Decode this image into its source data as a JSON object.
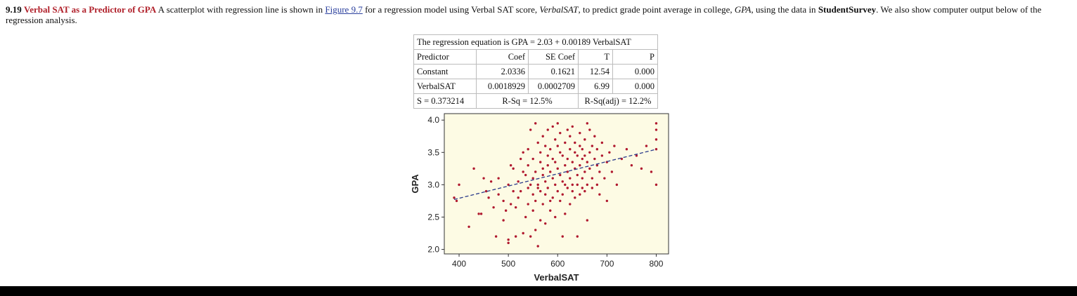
{
  "problem": {
    "number": "9.19",
    "title": "Verbal SAT as a Predictor of GPA",
    "text_1": " A scatterplot with regression line is shown in ",
    "link": "Figure 9.7",
    "text_2": " for a regression model using Verbal SAT score, ",
    "var1": "VerbalSAT",
    "text_3": ", to predict grade point average in college, ",
    "var2": "GPA",
    "text_4": ", using the data in ",
    "dataset": "StudentSurvey",
    "text_5": ". We also show computer output below of the regression analysis."
  },
  "regression_output": {
    "equation": "The regression equation is GPA = 2.03 + 0.00189 VerbalSAT",
    "headers": [
      "Predictor",
      "Coef",
      "SE Coef",
      "T",
      "P"
    ],
    "rows": [
      [
        "Constant",
        "2.0336",
        "0.1621",
        "12.54",
        "0.000"
      ],
      [
        "VerbalSAT",
        "0.0018929",
        "0.0002709",
        "6.99",
        "0.000"
      ]
    ],
    "s": "S = 0.373214",
    "rsq": "R-Sq = 12.5%",
    "rsq_adj": "R-Sq(adj) = 12.2%"
  },
  "chart_data": {
    "type": "scatter",
    "title": "",
    "xlabel": "VerbalSAT",
    "ylabel": "GPA",
    "xlim": [
      370,
      825
    ],
    "ylim": [
      1.93,
      4.1
    ],
    "xticks": [
      "400",
      "500",
      "600",
      "700",
      "800"
    ],
    "yticks": [
      "4.0",
      "3.5",
      "3.0",
      "2.5",
      "2.0"
    ],
    "regression_line": {
      "intercept": 2.0336,
      "slope": 0.0018929,
      "x_range": [
        390,
        800
      ]
    },
    "colors": {
      "points": "#b0192f",
      "line": "#2a3a8a",
      "plot_bg": "#fdfbe4"
    },
    "points": [
      [
        390,
        2.8
      ],
      [
        395,
        2.75
      ],
      [
        400,
        3.0
      ],
      [
        420,
        2.35
      ],
      [
        430,
        3.25
      ],
      [
        440,
        2.55
      ],
      [
        445,
        2.55
      ],
      [
        450,
        3.1
      ],
      [
        455,
        2.9
      ],
      [
        460,
        2.8
      ],
      [
        465,
        3.05
      ],
      [
        470,
        2.65
      ],
      [
        475,
        2.2
      ],
      [
        480,
        2.85
      ],
      [
        480,
        3.1
      ],
      [
        490,
        2.75
      ],
      [
        490,
        2.45
      ],
      [
        495,
        2.6
      ],
      [
        500,
        2.15
      ],
      [
        500,
        2.1
      ],
      [
        500,
        3.0
      ],
      [
        505,
        2.7
      ],
      [
        505,
        3.3
      ],
      [
        510,
        3.25
      ],
      [
        510,
        2.9
      ],
      [
        515,
        2.2
      ],
      [
        515,
        2.65
      ],
      [
        520,
        3.05
      ],
      [
        520,
        2.8
      ],
      [
        525,
        3.4
      ],
      [
        525,
        2.9
      ],
      [
        530,
        2.25
      ],
      [
        530,
        3.2
      ],
      [
        530,
        3.5
      ],
      [
        535,
        2.5
      ],
      [
        535,
        3.15
      ],
      [
        540,
        2.95
      ],
      [
        540,
        3.3
      ],
      [
        540,
        2.7
      ],
      [
        540,
        3.55
      ],
      [
        545,
        3.85
      ],
      [
        545,
        2.2
      ],
      [
        545,
        3.0
      ],
      [
        550,
        3.1
      ],
      [
        550,
        2.85
      ],
      [
        550,
        3.4
      ],
      [
        550,
        2.6
      ],
      [
        555,
        2.3
      ],
      [
        555,
        3.95
      ],
      [
        555,
        3.2
      ],
      [
        555,
        2.75
      ],
      [
        560,
        3.0
      ],
      [
        560,
        3.65
      ],
      [
        560,
        2.95
      ],
      [
        560,
        2.05
      ],
      [
        565,
        3.35
      ],
      [
        565,
        2.45
      ],
      [
        565,
        3.5
      ],
      [
        565,
        2.9
      ],
      [
        570,
        3.15
      ],
      [
        570,
        2.7
      ],
      [
        570,
        3.75
      ],
      [
        570,
        3.25
      ],
      [
        575,
        2.4
      ],
      [
        575,
        3.05
      ],
      [
        575,
        3.6
      ],
      [
        575,
        2.85
      ],
      [
        580,
        3.3
      ],
      [
        580,
        3.45
      ],
      [
        580,
        2.95
      ],
      [
        580,
        3.85
      ],
      [
        585,
        2.6
      ],
      [
        585,
        3.2
      ],
      [
        585,
        3.55
      ],
      [
        585,
        2.75
      ],
      [
        590,
        3.1
      ],
      [
        590,
        3.9
      ],
      [
        590,
        2.8
      ],
      [
        590,
        3.4
      ],
      [
        595,
        3.0
      ],
      [
        595,
        3.7
      ],
      [
        595,
        3.35
      ],
      [
        595,
        2.5
      ],
      [
        600,
        3.25
      ],
      [
        600,
        3.6
      ],
      [
        600,
        2.9
      ],
      [
        600,
        3.95
      ],
      [
        605,
        3.15
      ],
      [
        605,
        3.5
      ],
      [
        605,
        2.75
      ],
      [
        605,
        3.8
      ],
      [
        610,
        3.05
      ],
      [
        610,
        3.45
      ],
      [
        610,
        2.85
      ],
      [
        610,
        2.2
      ],
      [
        615,
        3.3
      ],
      [
        615,
        3.65
      ],
      [
        615,
        3.0
      ],
      [
        615,
        2.55
      ],
      [
        620,
        3.4
      ],
      [
        620,
        3.2
      ],
      [
        620,
        3.85
      ],
      [
        620,
        2.95
      ],
      [
        625,
        3.55
      ],
      [
        625,
        3.1
      ],
      [
        625,
        2.7
      ],
      [
        625,
        3.75
      ],
      [
        630,
        3.35
      ],
      [
        630,
        3.0
      ],
      [
        630,
        3.9
      ],
      [
        630,
        2.9
      ],
      [
        635,
        3.5
      ],
      [
        635,
        3.25
      ],
      [
        635,
        2.8
      ],
      [
        635,
        3.65
      ],
      [
        640,
        3.15
      ],
      [
        640,
        3.45
      ],
      [
        640,
        2.2
      ],
      [
        640,
        3.0
      ],
      [
        645,
        3.6
      ],
      [
        645,
        3.3
      ],
      [
        645,
        2.85
      ],
      [
        645,
        3.8
      ],
      [
        650,
        3.1
      ],
      [
        650,
        3.4
      ],
      [
        650,
        2.95
      ],
      [
        650,
        3.55
      ],
      [
        655,
        3.2
      ],
      [
        655,
        3.7
      ],
      [
        655,
        2.9
      ],
      [
        655,
        3.45
      ],
      [
        660,
        3.0
      ],
      [
        660,
        3.35
      ],
      [
        660,
        3.95
      ],
      [
        660,
        2.45
      ],
      [
        665,
        3.5
      ],
      [
        665,
        3.25
      ],
      [
        665,
        3.85
      ],
      [
        670,
        3.1
      ],
      [
        670,
        3.6
      ],
      [
        670,
        2.95
      ],
      [
        675,
        3.75
      ],
      [
        675,
        3.4
      ],
      [
        680,
        3.3
      ],
      [
        680,
        3.0
      ],
      [
        680,
        3.55
      ],
      [
        685,
        3.2
      ],
      [
        685,
        2.85
      ],
      [
        690,
        3.45
      ],
      [
        690,
        3.65
      ],
      [
        695,
        3.1
      ],
      [
        700,
        3.35
      ],
      [
        700,
        2.75
      ],
      [
        705,
        3.5
      ],
      [
        710,
        3.2
      ],
      [
        715,
        3.6
      ],
      [
        720,
        3.0
      ],
      [
        730,
        3.4
      ],
      [
        740,
        3.55
      ],
      [
        750,
        3.3
      ],
      [
        760,
        3.45
      ],
      [
        770,
        3.25
      ],
      [
        780,
        3.6
      ],
      [
        790,
        3.2
      ],
      [
        800,
        3.85
      ],
      [
        800,
        3.7
      ],
      [
        800,
        3.55
      ],
      [
        800,
        3.0
      ],
      [
        800,
        3.95
      ]
    ]
  }
}
